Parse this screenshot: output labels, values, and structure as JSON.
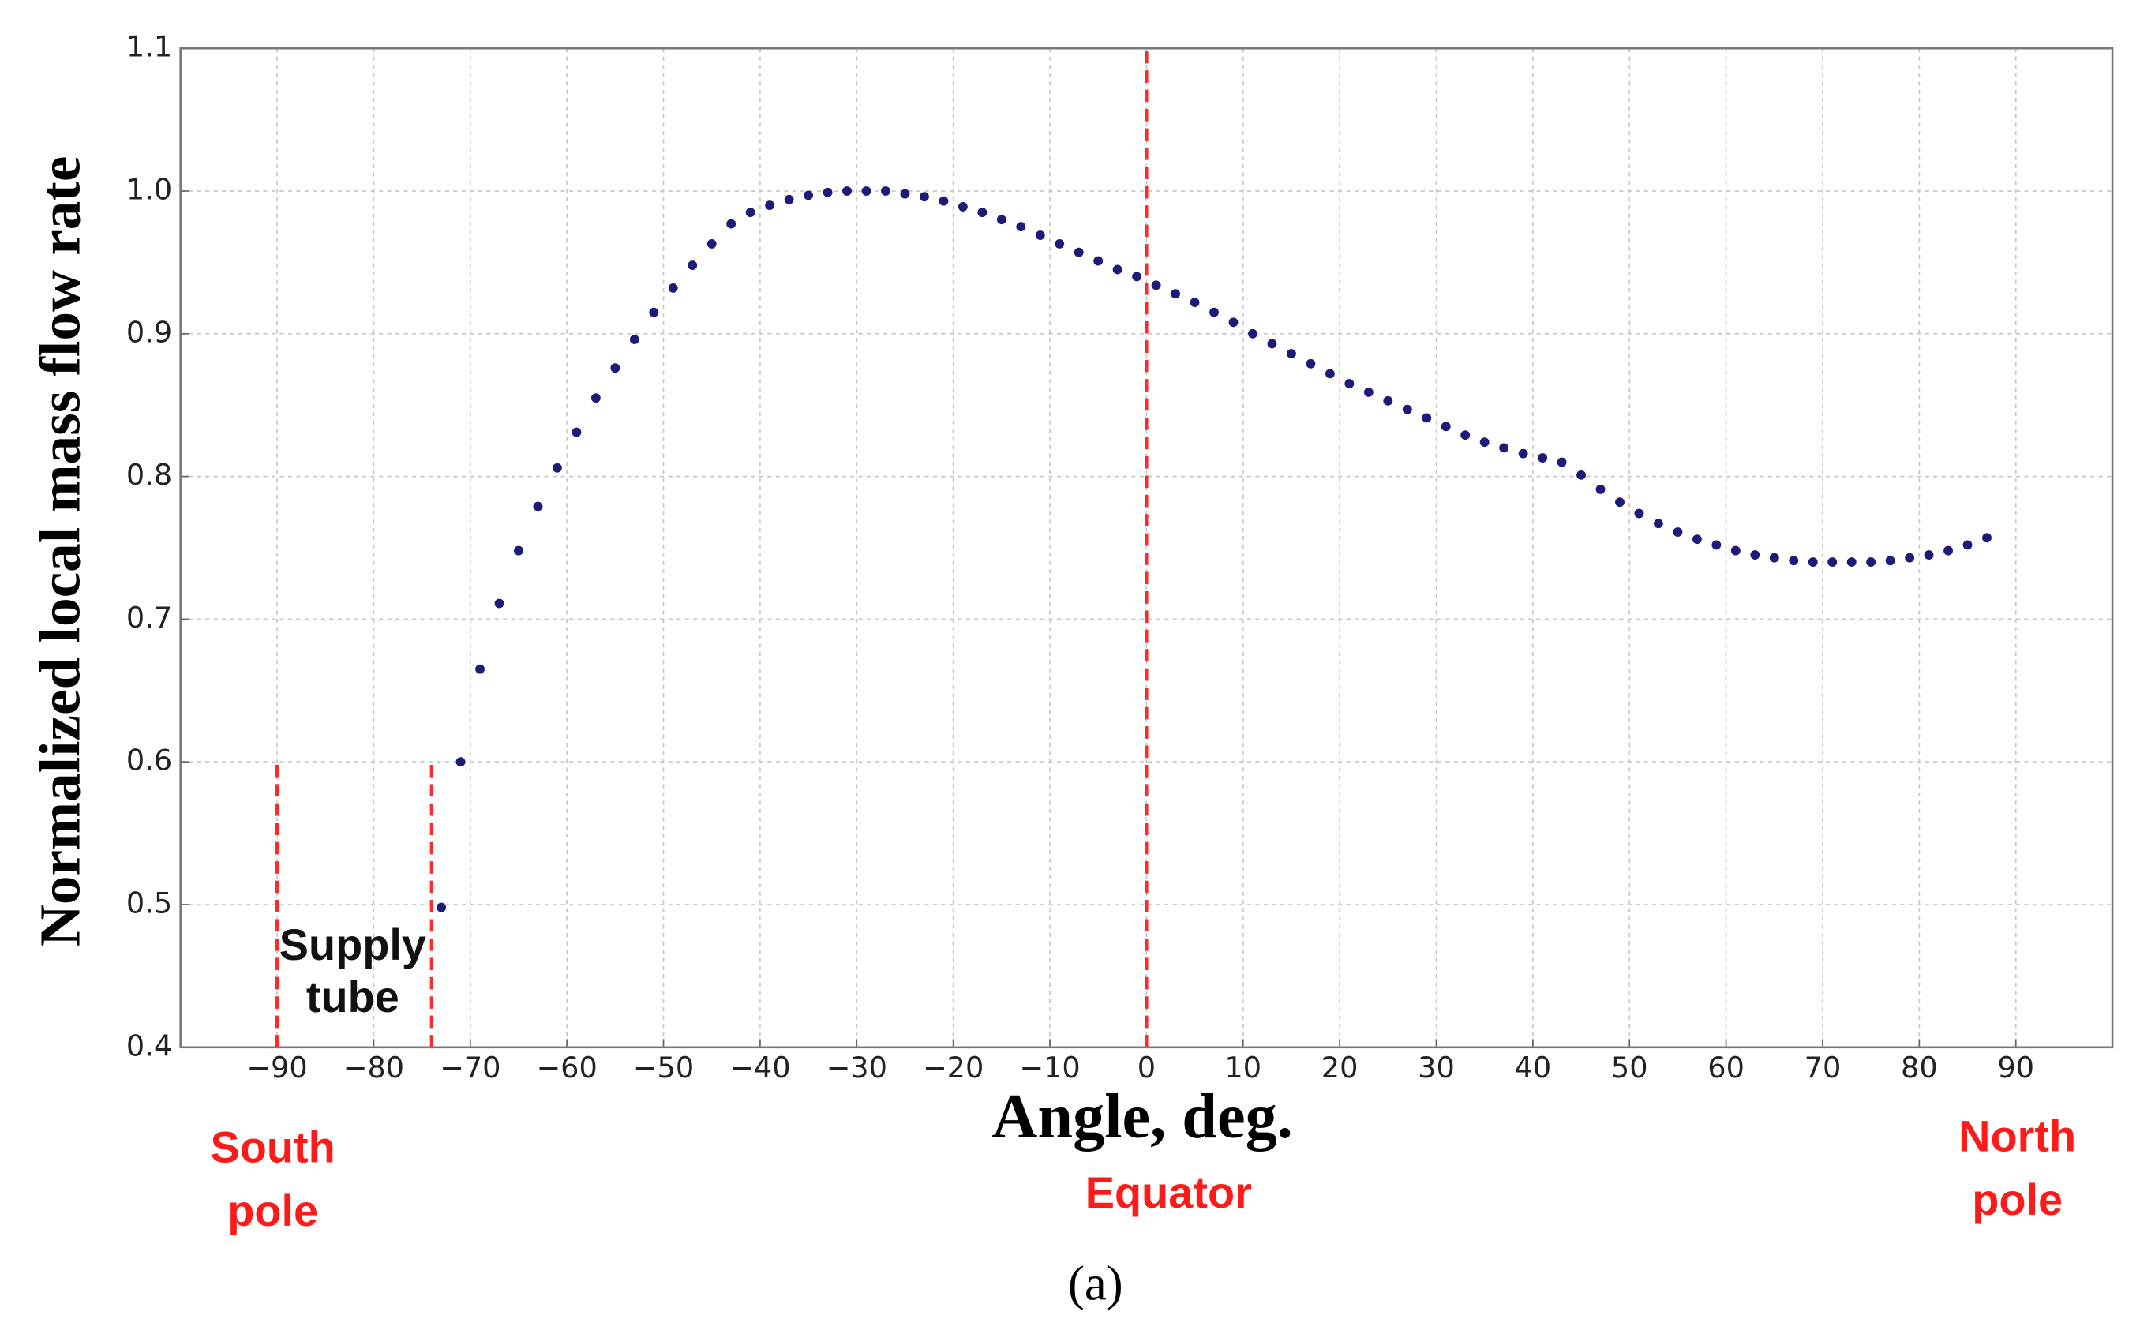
{
  "chart_data": {
    "type": "scatter",
    "xlabel": "Angle, deg.",
    "ylabel": "Normalized local mass flow rate",
    "caption": "(a)",
    "xlim": [
      -100,
      100
    ],
    "ylim": [
      0.4,
      1.1
    ],
    "xticks": [
      {
        "value": -90,
        "label": "−90"
      },
      {
        "value": -80,
        "label": "−80"
      },
      {
        "value": -70,
        "label": "−70"
      },
      {
        "value": -60,
        "label": "−60"
      },
      {
        "value": -50,
        "label": "−50"
      },
      {
        "value": -40,
        "label": "−40"
      },
      {
        "value": -30,
        "label": "−30"
      },
      {
        "value": -20,
        "label": "−20"
      },
      {
        "value": -10,
        "label": "−10"
      },
      0,
      10,
      20,
      30,
      40,
      50,
      60,
      70,
      80,
      90
    ],
    "yticks": [
      0.4,
      0.5,
      0.6,
      0.7,
      0.8,
      0.9,
      {
        "value": 1.0,
        "label": "1.0"
      },
      1.1
    ],
    "grid": true,
    "color": "#1c1c78",
    "x": [
      -73,
      -71,
      -69,
      -67,
      -65,
      -63,
      -61,
      -59,
      -57,
      -55,
      -53,
      -51,
      -49,
      -47,
      -45,
      -43,
      -41,
      -39,
      -37,
      -35,
      -33,
      -31,
      -29,
      -27,
      -25,
      -23,
      -21,
      -19,
      -17,
      -15,
      -13,
      -11,
      -9,
      -7,
      -5,
      -3,
      -1,
      1,
      3,
      5,
      7,
      9,
      11,
      13,
      15,
      17,
      19,
      21,
      23,
      25,
      27,
      29,
      31,
      33,
      35,
      37,
      39,
      41,
      43,
      45,
      47,
      49,
      51,
      53,
      55,
      57,
      59,
      61,
      63,
      65,
      67,
      69,
      71,
      73,
      75,
      77,
      79,
      81,
      83,
      85,
      87
    ],
    "values": [
      0.498,
      0.6,
      0.665,
      0.711,
      0.748,
      0.779,
      0.806,
      0.831,
      0.855,
      0.876,
      0.896,
      0.915,
      0.932,
      0.948,
      0.963,
      0.977,
      0.985,
      0.99,
      0.994,
      0.997,
      0.999,
      1.0,
      1.0,
      1.0,
      0.998,
      0.996,
      0.993,
      0.989,
      0.985,
      0.98,
      0.975,
      0.969,
      0.963,
      0.957,
      0.951,
      0.945,
      0.94,
      0.934,
      0.928,
      0.922,
      0.915,
      0.908,
      0.9,
      0.893,
      0.886,
      0.879,
      0.872,
      0.865,
      0.859,
      0.853,
      0.847,
      0.841,
      0.835,
      0.829,
      0.824,
      0.82,
      0.816,
      0.813,
      0.81,
      0.801,
      0.791,
      0.782,
      0.774,
      0.767,
      0.761,
      0.756,
      0.752,
      0.748,
      0.745,
      0.743,
      0.741,
      0.74,
      0.74,
      0.74,
      0.74,
      0.741,
      0.743,
      0.745,
      0.748,
      0.752,
      0.757
    ],
    "vlines": [
      {
        "x": -90,
        "y": [
          0.4,
          0.6
        ]
      },
      {
        "x": -74,
        "y": [
          0.4,
          0.6
        ]
      },
      {
        "x": 0,
        "y": [
          0.4,
          1.1
        ]
      }
    ],
    "vline_color": "#ff2a2a",
    "annotations": [
      {
        "lines": [
          "South",
          "pole"
        ],
        "color": "#ff1a1a"
      },
      {
        "lines": [
          "Supply",
          "tube"
        ],
        "color": "#111111"
      },
      {
        "lines": [
          "Equator"
        ],
        "color": "#ff1a1a"
      },
      {
        "lines": [
          "North",
          "pole"
        ],
        "color": "#ff1a1a"
      }
    ]
  }
}
